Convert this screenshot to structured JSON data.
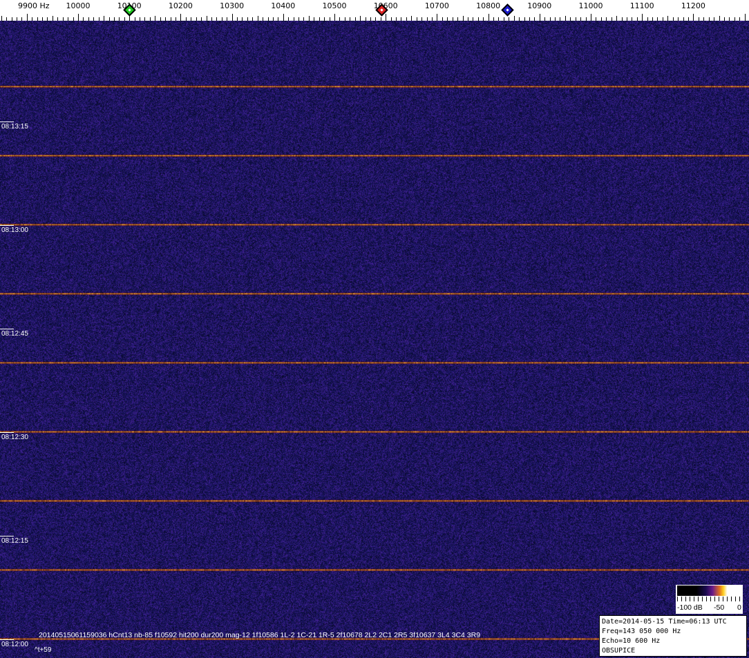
{
  "frequency_scale": {
    "unit": "Hz",
    "labels": [
      "9900 Hz",
      "10000",
      "10100",
      "10200",
      "10300",
      "10400",
      "10500",
      "10600",
      "10700",
      "10800",
      "10900",
      "11000",
      "11100",
      "11200"
    ],
    "values": [
      9900,
      10000,
      10100,
      10200,
      10300,
      10400,
      10500,
      10600,
      10700,
      10800,
      10900,
      11000,
      11100,
      11200
    ],
    "markers": [
      {
        "name": "green",
        "freq": 10100,
        "color": "#22cc22"
      },
      {
        "name": "red",
        "freq": 10592,
        "color": "#dd2222"
      },
      {
        "name": "blue",
        "freq": 10837,
        "color": "#1a1acc"
      }
    ]
  },
  "time_labels": [
    "08:13:15",
    "08:13:00",
    "08:12:45",
    "08:12:30",
    "08:12:15",
    "08:12:00"
  ],
  "detection_text": "20140515061159036 hCnt13 nb-85 f10592 hit200 dur200 mag-12 1f10586 1L-2 1C-21 1R-5 2f10678 2L2 2C1 2R5 3f10637 3L4 3C4 3R9",
  "time_offset": "^t+59",
  "colorbar": {
    "labels": [
      "-100 dB",
      "-50",
      "0"
    ]
  },
  "info": {
    "date_line": "Date=2014-05-15 Time=06:13 UTC",
    "freq_line": "Freq=143 050 000 Hz",
    "echo_line": "Echo=10 600 Hz",
    "station": "OBSUPICE"
  },
  "colors": {
    "background": "#0c0c3a",
    "signal": "#ffb040"
  }
}
